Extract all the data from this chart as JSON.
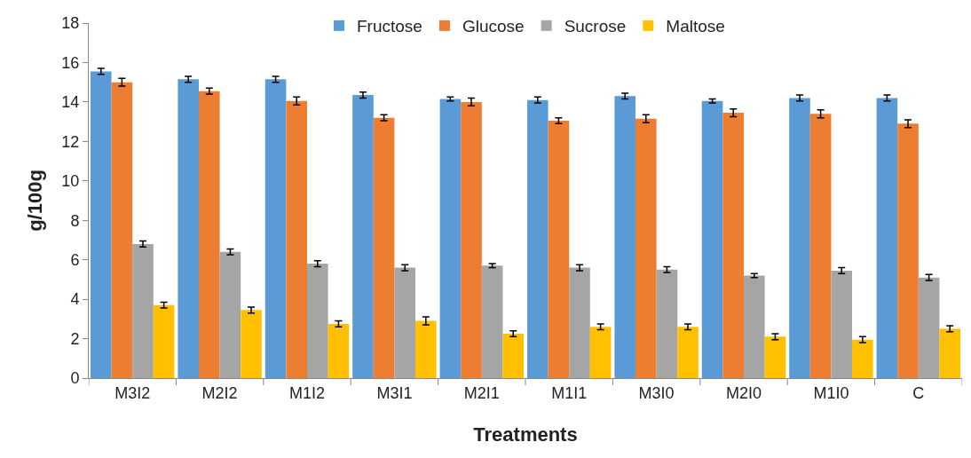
{
  "chart_data": {
    "type": "bar",
    "xlabel": "Treatments",
    "ylabel": "g/100g",
    "categories": [
      "M3I2",
      "M2I2",
      "M1I2",
      "M3I1",
      "M2I1",
      "M1I1",
      "M3I0",
      "M2I0",
      "M1I0",
      "C"
    ],
    "series": [
      {
        "name": "Fructose",
        "color": "#5b9bd5",
        "values": [
          15.55,
          15.15,
          15.15,
          14.35,
          14.15,
          14.1,
          14.3,
          14.05,
          14.2,
          14.2
        ],
        "errors": [
          0.15,
          0.15,
          0.15,
          0.15,
          0.1,
          0.15,
          0.15,
          0.1,
          0.15,
          0.15
        ]
      },
      {
        "name": "Glucose",
        "color": "#ed7d31",
        "values": [
          15.0,
          14.55,
          14.05,
          13.2,
          14.0,
          13.05,
          13.15,
          13.45,
          13.4,
          12.9
        ],
        "errors": [
          0.2,
          0.15,
          0.2,
          0.15,
          0.2,
          0.15,
          0.2,
          0.2,
          0.2,
          0.2
        ]
      },
      {
        "name": "Sucrose",
        "color": "#a5a5a5",
        "values": [
          6.8,
          6.4,
          5.8,
          5.6,
          5.7,
          5.6,
          5.5,
          5.2,
          5.45,
          5.1
        ],
        "errors": [
          0.15,
          0.15,
          0.15,
          0.15,
          0.1,
          0.15,
          0.15,
          0.1,
          0.15,
          0.15
        ]
      },
      {
        "name": "Maltose",
        "color": "#ffc000",
        "values": [
          3.7,
          3.45,
          2.75,
          2.9,
          2.25,
          2.6,
          2.6,
          2.1,
          1.95,
          2.5
        ],
        "errors": [
          0.15,
          0.15,
          0.15,
          0.2,
          0.15,
          0.15,
          0.15,
          0.15,
          0.15,
          0.15
        ]
      }
    ],
    "ylim": [
      0,
      18
    ],
    "yticks": [
      0,
      2,
      4,
      6,
      8,
      10,
      12,
      14,
      16,
      18
    ],
    "grid": false,
    "legend": "top"
  }
}
